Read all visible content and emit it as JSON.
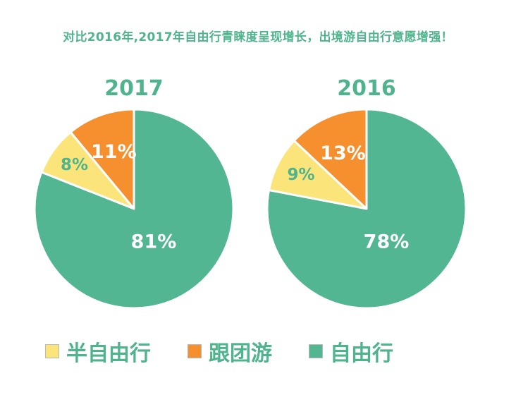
{
  "headline": "对比2016年,2017年自由行青睐度呈现增长，出境游自由行意愿增强！",
  "colors": {
    "green": "#52b692",
    "orange": "#f6902f",
    "yellow": "#fbe57a",
    "text_green": "#4fb48d",
    "white": "#ffffff"
  },
  "chart_data": [
    {
      "type": "pie",
      "title": "2017",
      "slices": [
        {
          "label": "半自由行",
          "value": 8,
          "display": "8%",
          "color": "#fbe57a"
        },
        {
          "label": "跟团游",
          "value": 11,
          "display": "11%",
          "color": "#f6902f"
        },
        {
          "label": "自由行",
          "value": 81,
          "display": "81%",
          "color": "#52b692"
        }
      ],
      "legend_position": "bottom"
    },
    {
      "type": "pie",
      "title": "2016",
      "slices": [
        {
          "label": "半自由行",
          "value": 9,
          "display": "9%",
          "color": "#fbe57a"
        },
        {
          "label": "跟团游",
          "value": 13,
          "display": "13%",
          "color": "#f6902f"
        },
        {
          "label": "自由行",
          "value": 78,
          "display": "78%",
          "color": "#52b692"
        }
      ],
      "legend_position": "bottom"
    }
  ],
  "legend": [
    {
      "label": "半自由行",
      "color": "#fbe57a"
    },
    {
      "label": "跟团游",
      "color": "#f6902f"
    },
    {
      "label": "自由行",
      "color": "#52b692"
    }
  ]
}
